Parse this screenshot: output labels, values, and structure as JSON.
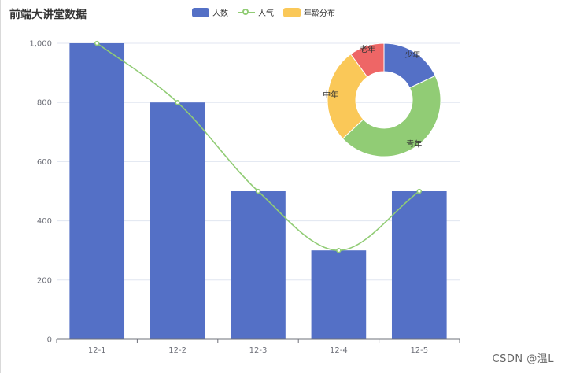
{
  "title": "前端大讲堂数据",
  "watermark": "CSDN @温L",
  "legend": [
    {
      "label": "人数",
      "color": "#5470c6",
      "kind": "bar"
    },
    {
      "label": "人气",
      "color": "#91cc75",
      "kind": "line"
    },
    {
      "label": "年龄分布",
      "color": "#fac858",
      "kind": "pie"
    }
  ],
  "chart_data": {
    "type": "bar",
    "categories": [
      "12-1",
      "12-2",
      "12-3",
      "12-4",
      "12-5"
    ],
    "series": [
      {
        "name": "人数",
        "type": "bar",
        "values": [
          1000,
          800,
          500,
          300,
          500
        ],
        "color": "#5470c6"
      },
      {
        "name": "人气",
        "type": "line",
        "smooth": true,
        "values": [
          1000,
          800,
          500,
          300,
          500
        ],
        "color": "#91cc75"
      }
    ],
    "ylim": [
      0,
      1000
    ],
    "yticks": [
      0,
      200,
      400,
      600,
      800,
      1000
    ],
    "ytick_labels": [
      "0",
      "200",
      "400",
      "600",
      "800",
      "1,000"
    ],
    "grid": true,
    "pie": {
      "name": "年龄分布",
      "type": "donut",
      "slices": [
        {
          "label": "少年",
          "value": 18,
          "color": "#5470c6"
        },
        {
          "label": "青年",
          "value": 45,
          "color": "#91cc75"
        },
        {
          "label": "中年",
          "value": 27,
          "color": "#fac858"
        },
        {
          "label": "老年",
          "value": 10,
          "color": "#ee6666"
        }
      ]
    }
  }
}
